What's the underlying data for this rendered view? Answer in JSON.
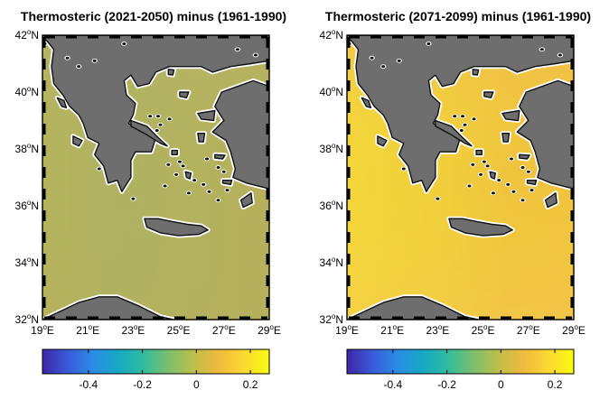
{
  "colors": {
    "land": "#6e6e6e",
    "coast_white": "#ffffff",
    "coast_black": "#111111",
    "sea_panel_left": "#b3b260",
    "sea_panel_right": "#efd43a"
  },
  "colormap": [
    "#3e26a8",
    "#3a5ad9",
    "#2a8ce6",
    "#17a8c4",
    "#2fbc9e",
    "#7dbf6c",
    "#bcbf4b",
    "#f1b93d",
    "#fbd932",
    "#f9fb0e"
  ],
  "maps": [
    {
      "title": "Thermosteric (2021-2050) minus (1961-1990)",
      "colorbar": {
        "min": -0.57,
        "max": 0.27,
        "ticks": [
          -0.4,
          -0.2,
          0,
          0.2
        ]
      },
      "lat_labels": [
        "42",
        "40",
        "38",
        "36",
        "34",
        "32"
      ],
      "lon_labels": [
        "19",
        "21",
        "23",
        "25",
        "27",
        "29"
      ],
      "lat_suffix": "N",
      "lon_suffix": "E"
    },
    {
      "title": "Thermosteric (2071-2099) minus (1961-1990)",
      "colorbar": {
        "min": -0.57,
        "max": 0.27,
        "ticks": [
          -0.4,
          -0.2,
          0,
          0.2
        ]
      },
      "lat_labels": [
        "42",
        "40",
        "38",
        "36",
        "34",
        "32"
      ],
      "lon_labels": [
        "19",
        "21",
        "23",
        "25",
        "27",
        "29"
      ],
      "lat_suffix": "N",
      "lon_suffix": "E"
    }
  ]
}
